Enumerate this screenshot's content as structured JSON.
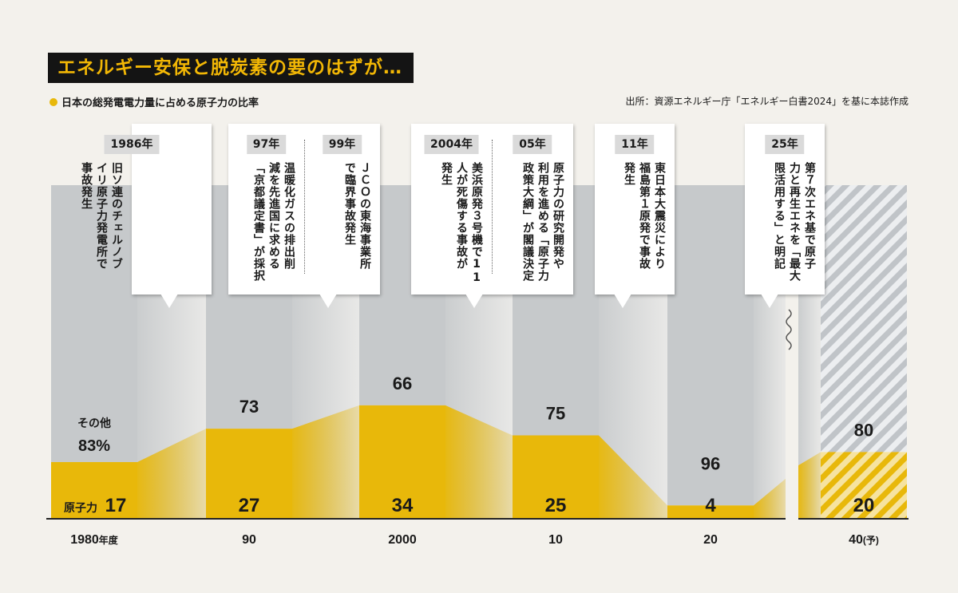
{
  "title": "エネルギー安保と脱炭素の要のはずが…",
  "subtitle": "日本の総発電電力量に占める原子力の比率",
  "source": "出所：資源エネルギー庁「エネルギー白書2024」を基に本誌作成",
  "colors": {
    "nuclear": "#e8b80a",
    "other": "#c6c9cb",
    "background": "#f3f1ec",
    "title_bg": "#141414",
    "title_text": "#f2b705"
  },
  "chart_data": {
    "type": "bar",
    "categories": [
      "1980年度",
      "90",
      "2000",
      "10",
      "20",
      "40(予)"
    ],
    "series": [
      {
        "name": "原子力",
        "values": [
          17,
          27,
          34,
          25,
          4,
          20
        ]
      },
      {
        "name": "その他",
        "values": [
          83,
          73,
          66,
          75,
          96,
          80
        ]
      }
    ],
    "projected": [
      false,
      false,
      false,
      false,
      false,
      true
    ],
    "ylim": [
      0,
      100
    ],
    "label_nuclear": "原子力",
    "label_other": "その他",
    "first_other_label": "83%",
    "pct_suffix": "%",
    "x_labels": [
      {
        "main": "1980",
        "suffix": "年度"
      },
      {
        "main": "90",
        "suffix": ""
      },
      {
        "main": "2000",
        "suffix": ""
      },
      {
        "main": "10",
        "suffix": ""
      },
      {
        "main": "20",
        "suffix": ""
      },
      {
        "main": "40",
        "suffix": "(予)"
      }
    ]
  },
  "events": [
    {
      "year": "1986年",
      "text": "旧ソ連のチェルノブ\nイリ原子力発電所で\n事故発生"
    },
    {
      "year": "97年",
      "text": "温暖化ガスの排出削\n減を先進国に求める\n「京都議定書」が採択"
    },
    {
      "year": "99年",
      "text": "ＪＣＯの東海事業所\nで臨界事故発生"
    },
    {
      "year": "2004年",
      "text": "美浜原発３号機で11\n人が死傷する事故が\n発生"
    },
    {
      "year": "05年",
      "text": "原子力の研究開発や\n利用を進める「原子力\n政策大綱」が閣議決定"
    },
    {
      "year": "11年",
      "text": "東日本大震災により\n福島第１原発で事故\n発生"
    },
    {
      "year": "25年",
      "text": "第７次エネ基で原子\n力と再生エネを「最大\n限活用する」と明記"
    }
  ]
}
